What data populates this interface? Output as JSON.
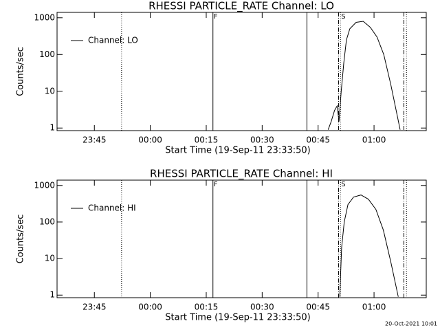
{
  "chart_data": [
    {
      "type": "line",
      "title": "RHESSI PARTICLE_RATE Channel: LO",
      "xlabel": "Start Time (19-Sep-11 23:33:50)",
      "ylabel": "Counts/sec",
      "log_y": true,
      "ylim": [
        0.85,
        1400
      ],
      "yticks": [
        1,
        10,
        100,
        1000
      ],
      "xlim": [
        -25,
        74
      ],
      "xticks": [
        {
          "value": -15,
          "label": "23:45"
        },
        {
          "value": 0,
          "label": "00:00"
        },
        {
          "value": 15,
          "label": "00:15"
        },
        {
          "value": 30,
          "label": "00:30"
        },
        {
          "value": 45,
          "label": "00:45"
        },
        {
          "value": 60,
          "label": "01:00"
        }
      ],
      "legend": "upper left",
      "series": [
        {
          "name": "Channel: LO",
          "color": "#000000",
          "x": [
            47.7,
            48.5,
            49.4,
            50.1,
            50.6,
            51.2,
            51.9,
            52.6,
            53.5,
            55.2,
            57.1,
            59.0,
            60.8,
            62.6,
            64.5,
            66.3,
            67.0
          ],
          "values": [
            0.9,
            1.5,
            3,
            4,
            1.5,
            10,
            60,
            250,
            500,
            750,
            800,
            550,
            300,
            100,
            15,
            2,
            0.9
          ]
        }
      ],
      "markers": [
        {
          "x": -7.7,
          "style": "dotted"
        },
        {
          "x": 16.8,
          "style": "solid",
          "label": "F"
        },
        {
          "x": 42,
          "style": "solid"
        },
        {
          "x": 50.5,
          "style": "dashdot"
        },
        {
          "x": 51,
          "style": "dotted",
          "label": "S"
        },
        {
          "x": 68,
          "style": "dashdot"
        },
        {
          "x": 68.7,
          "style": "dotted"
        }
      ]
    },
    {
      "type": "line",
      "title": "RHESSI PARTICLE_RATE Channel: HI",
      "xlabel": "Start Time (19-Sep-11 23:33:50)",
      "ylabel": "Counts/sec",
      "log_y": true,
      "ylim": [
        0.85,
        1400
      ],
      "yticks": [
        1,
        10,
        100,
        1000
      ],
      "xlim": [
        -25,
        74
      ],
      "xticks": [
        {
          "value": -15,
          "label": "23:45"
        },
        {
          "value": 0,
          "label": "00:00"
        },
        {
          "value": 15,
          "label": "00:15"
        },
        {
          "value": 30,
          "label": "00:30"
        },
        {
          "value": 45,
          "label": "00:45"
        },
        {
          "value": 60,
          "label": "01:00"
        }
      ],
      "legend": "upper left",
      "series": [
        {
          "name": "Channel: HI",
          "color": "#000000",
          "x": [
            50.8,
            51.3,
            52.0,
            53.0,
            54.5,
            56.5,
            58.5,
            60.5,
            62.5,
            64.5,
            66.5
          ],
          "values": [
            0.9,
            20,
            100,
            300,
            480,
            550,
            420,
            220,
            60,
            8,
            0.9
          ]
        }
      ],
      "markers": [
        {
          "x": -7.7,
          "style": "dotted"
        },
        {
          "x": 16.8,
          "style": "solid",
          "label": "F"
        },
        {
          "x": 42,
          "style": "solid"
        },
        {
          "x": 50.5,
          "style": "dashdot"
        },
        {
          "x": 51,
          "style": "dotted",
          "label": "S"
        },
        {
          "x": 68,
          "style": "dashdot"
        },
        {
          "x": 68.7,
          "style": "dotted"
        }
      ]
    }
  ],
  "footer": "20-Oct-2021 10:01"
}
